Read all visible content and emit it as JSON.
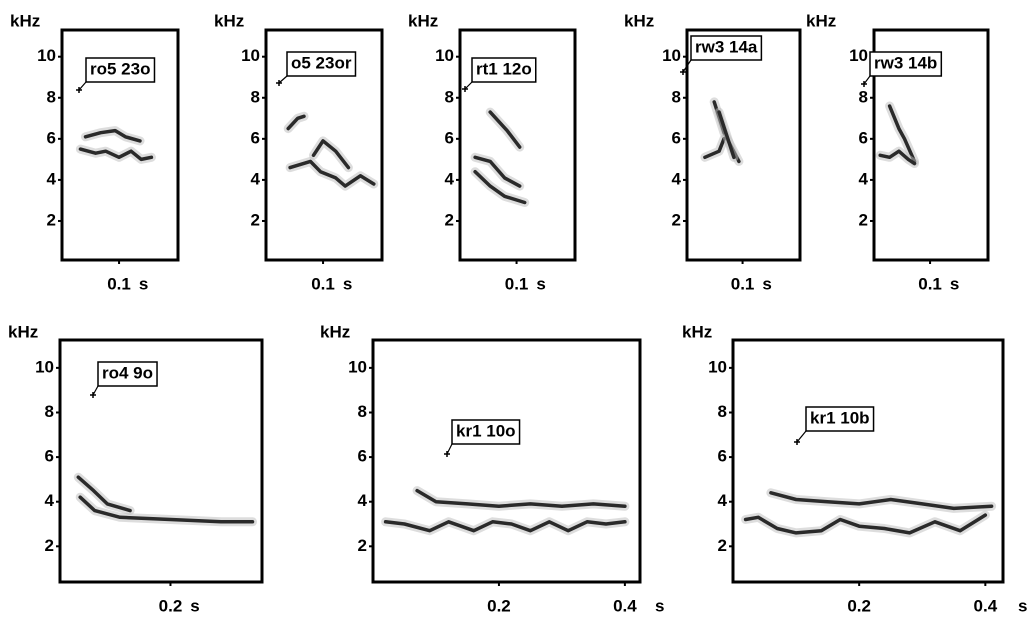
{
  "chart_data": [
    {
      "type": "spectrogram",
      "label": "ro5 23o",
      "ylabel": "kHz",
      "xlabel": "s",
      "color": "#2a2a2a",
      "xlim": [
        0.01,
        0.193
      ],
      "ylim": [
        0.1,
        11.3
      ],
      "xticks": [
        0.1
      ],
      "yticks": [
        2,
        4,
        6,
        8,
        10
      ],
      "series": [
        {
          "x": [
            0.039,
            0.063,
            0.079,
            0.1,
            0.119,
            0.135,
            0.151
          ],
          "values": [
            5.5,
            5.3,
            5.4,
            5.1,
            5.4,
            5.0,
            5.1
          ]
        },
        {
          "x": [
            0.047,
            0.071,
            0.094,
            0.11,
            0.133
          ],
          "values": [
            6.1,
            6.3,
            6.4,
            6.1,
            5.9
          ]
        }
      ]
    },
    {
      "type": "spectrogram",
      "label": "o5 23or",
      "ylabel": "kHz",
      "xlabel": "s",
      "color": "#2a2a2a",
      "xlim": [
        0.01,
        0.193
      ],
      "ylim": [
        0.1,
        11.3
      ],
      "xticks": [
        0.1
      ],
      "yticks": [
        2,
        4,
        6,
        8,
        10
      ],
      "series": [
        {
          "x": [
            0.045,
            0.06,
            0.07
          ],
          "values": [
            6.5,
            7.0,
            7.1
          ]
        },
        {
          "x": [
            0.048,
            0.08,
            0.096,
            0.12,
            0.135,
            0.159,
            0.18
          ],
          "values": [
            4.6,
            4.9,
            4.4,
            4.1,
            3.7,
            4.2,
            3.8
          ]
        },
        {
          "x": [
            0.085,
            0.1,
            0.12,
            0.14
          ],
          "values": [
            5.2,
            5.9,
            5.4,
            4.6
          ]
        }
      ]
    },
    {
      "type": "spectrogram",
      "label": "rt1 12o",
      "ylabel": "kHz",
      "xlabel": "s",
      "color": "#2a2a2a",
      "xlim": [
        0.01,
        0.193
      ],
      "ylim": [
        0.1,
        11.3
      ],
      "xticks": [
        0.1
      ],
      "yticks": [
        2,
        4,
        6,
        8,
        10
      ],
      "series": [
        {
          "x": [
            0.034,
            0.058,
            0.081,
            0.105
          ],
          "values": [
            5.1,
            4.9,
            4.1,
            3.7
          ]
        },
        {
          "x": [
            0.034,
            0.058,
            0.081,
            0.113
          ],
          "values": [
            4.4,
            3.7,
            3.2,
            2.9
          ]
        },
        {
          "x": [
            0.058,
            0.085,
            0.105
          ],
          "values": [
            7.3,
            6.4,
            5.6
          ]
        }
      ]
    },
    {
      "type": "spectrogram",
      "label": "rw3 14a",
      "ylabel": "kHz",
      "xlabel": "s",
      "color": "#2a2a2a",
      "xlim": [
        0.01,
        0.193
      ],
      "ylim": [
        0.1,
        11.3
      ],
      "xticks": [
        0.1
      ],
      "yticks": [
        2,
        4,
        6,
        8,
        10
      ],
      "series": [
        {
          "x": [
            0.054,
            0.07,
            0.094
          ],
          "values": [
            7.8,
            6.3,
            4.9
          ]
        },
        {
          "x": [
            0.039,
            0.062,
            0.07
          ],
          "values": [
            5.1,
            5.4,
            6.0
          ]
        },
        {
          "x": [
            0.062,
            0.086
          ],
          "values": [
            7.3,
            5.1
          ]
        }
      ]
    },
    {
      "type": "spectrogram",
      "label": "rw3 14b",
      "ylabel": "kHz",
      "xlabel": "s",
      "color": "#2a2a2a",
      "xlim": [
        0.01,
        0.193
      ],
      "ylim": [
        0.1,
        11.3
      ],
      "xticks": [
        0.1
      ],
      "yticks": [
        2,
        4,
        6,
        8,
        10
      ],
      "series": [
        {
          "x": [
            0.035,
            0.05,
            0.059,
            0.075
          ],
          "values": [
            7.6,
            6.5,
            6.0,
            4.9
          ]
        },
        {
          "x": [
            0.02,
            0.035,
            0.05,
            0.065,
            0.075
          ],
          "values": [
            5.2,
            5.1,
            5.4,
            5.0,
            4.8
          ]
        }
      ]
    },
    {
      "type": "spectrogram",
      "label": "ro4 9o",
      "ylabel": "kHz",
      "xlabel": "s",
      "color": "#2a2a2a",
      "xlim": [
        0.025,
        0.345
      ],
      "ylim": [
        0.4,
        11.25
      ],
      "xticks": [
        0.2
      ],
      "yticks": [
        2,
        4,
        6,
        8,
        10
      ],
      "series": [
        {
          "x": [
            0.054,
            0.078,
            0.1,
            0.136
          ],
          "values": [
            5.1,
            4.5,
            3.9,
            3.6
          ]
        },
        {
          "x": [
            0.057,
            0.08,
            0.12,
            0.2,
            0.28,
            0.33
          ],
          "values": [
            4.2,
            3.6,
            3.3,
            3.2,
            3.1,
            3.1
          ]
        }
      ]
    },
    {
      "type": "spectrogram",
      "label": "kr1 10o",
      "ylabel": "kHz",
      "xlabel": "s",
      "color": "#2a2a2a",
      "xlim": [
        0,
        0.424
      ],
      "ylim": [
        0.4,
        11.25
      ],
      "xticks": [
        0.2,
        0.4
      ],
      "yticks": [
        2,
        4,
        6,
        8,
        10
      ],
      "series": [
        {
          "x": [
            0.07,
            0.1,
            0.15,
            0.2,
            0.25,
            0.3,
            0.35,
            0.4
          ],
          "values": [
            4.5,
            4.0,
            3.9,
            3.8,
            3.9,
            3.8,
            3.9,
            3.8
          ]
        },
        {
          "x": [
            0.02,
            0.05,
            0.09,
            0.12,
            0.16,
            0.19,
            0.22,
            0.25,
            0.28,
            0.31,
            0.34,
            0.37,
            0.4
          ],
          "values": [
            3.1,
            3.0,
            2.7,
            3.1,
            2.7,
            3.1,
            3.0,
            2.7,
            3.1,
            2.7,
            3.1,
            3.0,
            3.1
          ]
        }
      ]
    },
    {
      "type": "spectrogram",
      "label": "kr1 10b",
      "ylabel": "kHz",
      "xlabel": "s",
      "color": "#2a2a2a",
      "xlim": [
        0,
        0.428
      ],
      "ylim": [
        0.4,
        11.25
      ],
      "xticks": [
        0.2,
        0.4
      ],
      "yticks": [
        2,
        4,
        6,
        8,
        10
      ],
      "series": [
        {
          "x": [
            0.06,
            0.1,
            0.15,
            0.2,
            0.25,
            0.3,
            0.35,
            0.41
          ],
          "values": [
            4.4,
            4.1,
            4.0,
            3.9,
            4.1,
            3.9,
            3.7,
            3.8
          ]
        },
        {
          "x": [
            0.02,
            0.04,
            0.07,
            0.1,
            0.14,
            0.17,
            0.2,
            0.24,
            0.28,
            0.32,
            0.36,
            0.4
          ],
          "values": [
            3.2,
            3.3,
            2.8,
            2.6,
            2.7,
            3.2,
            2.9,
            2.8,
            2.6,
            3.1,
            2.7,
            3.4
          ]
        }
      ]
    }
  ]
}
